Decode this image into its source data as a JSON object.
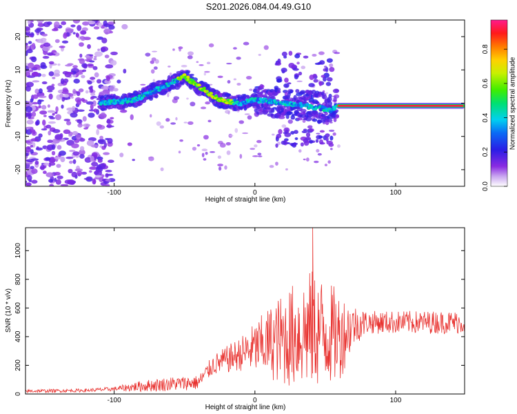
{
  "title": "S201.2026.084.04.49.G10",
  "colors": {
    "snr_line": "#e8312e",
    "axis": "#000000",
    "background": "#ffffff"
  },
  "chart_data": [
    {
      "type": "heatmap",
      "title": "S201.2026.084.04.49.G10",
      "xlabel": "Height of straight line (km)",
      "ylabel": "Frequency (Hz)",
      "xlim": [
        -163,
        149
      ],
      "ylim": [
        -25,
        25
      ],
      "x_ticks": [
        -100,
        0,
        100
      ],
      "y_ticks": [
        -20,
        -10,
        0,
        10,
        20
      ],
      "colorbar": {
        "label": "Normalized spectral amplitude",
        "range": [
          0,
          0.97
        ],
        "ticks": [
          0.0,
          0.2,
          0.4,
          0.6,
          0.8
        ],
        "colormap": "rainbow (purple-blue-cyan-green-yellow-orange-red-magenta)"
      },
      "features": [
        {
          "name": "noise",
          "x_range": [
            -163,
            -100
          ],
          "freq_range": [
            -25,
            25
          ],
          "amplitude": 0.1
        },
        {
          "name": "signal track",
          "x": [
            -110,
            -85,
            -70,
            -50,
            -40,
            -25,
            -10,
            0,
            20,
            40,
            55,
            58
          ],
          "freq": [
            0,
            1,
            4,
            8,
            5,
            1,
            0,
            1,
            0,
            -1,
            -2,
            -0.5
          ],
          "amplitude": 0.25
        },
        {
          "name": "steady tone",
          "x_range": [
            58,
            149
          ],
          "freq": -0.8,
          "amplitude": 0.95
        }
      ]
    },
    {
      "type": "line",
      "xlabel": "Height of straight line (km)",
      "ylabel": "SNR (10 * v/v)",
      "xlim": [
        -163,
        149
      ],
      "ylim": [
        0,
        1160
      ],
      "x_ticks": [
        -100,
        0,
        100
      ],
      "y_ticks": [
        0,
        200,
        400,
        600,
        800,
        1000
      ],
      "series": [
        {
          "name": "SNR",
          "envelope_x": [
            -163,
            -120,
            -100,
            -80,
            -60,
            -40,
            -30,
            -10,
            0,
            10,
            20,
            30,
            40,
            50,
            60,
            70,
            80,
            100,
            149
          ],
          "envelope_mean": [
            20,
            25,
            35,
            55,
            70,
            80,
            200,
            280,
            320,
            360,
            380,
            420,
            450,
            430,
            400,
            480,
            500,
            500,
            500
          ],
          "envelope_amplitude": [
            12,
            12,
            15,
            40,
            50,
            50,
            70,
            120,
            180,
            250,
            330,
            380,
            420,
            380,
            320,
            150,
            80,
            80,
            80
          ],
          "peak": {
            "x": 41,
            "y": 1160
          }
        }
      ]
    }
  ]
}
